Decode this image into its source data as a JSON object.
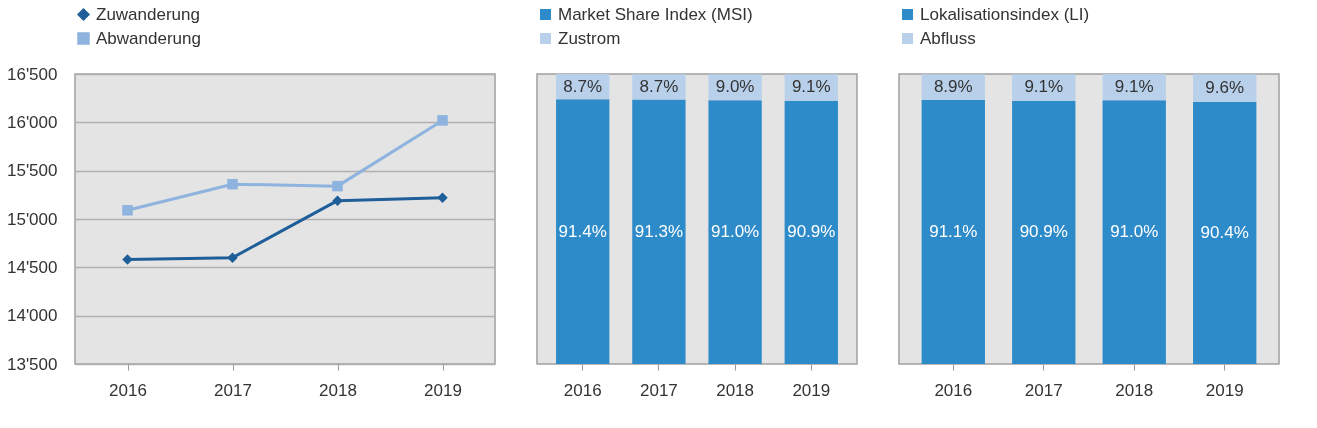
{
  "chart_data": [
    {
      "type": "line",
      "categories": [
        "2016",
        "2017",
        "2018",
        "2019"
      ],
      "series": [
        {
          "name": "Zuwanderung",
          "color": "#1f5f99",
          "marker": "diamond",
          "values": [
            14580,
            14600,
            15190,
            15220
          ]
        },
        {
          "name": "Abwanderung",
          "color": "#8db3de",
          "marker": "square",
          "values": [
            15090,
            15360,
            15340,
            16020
          ]
        }
      ],
      "ylim": [
        13500,
        16500
      ],
      "yticks": [
        {
          "value": 13500,
          "label": "13'500"
        },
        {
          "value": 14000,
          "label": "14'000"
        },
        {
          "value": 14500,
          "label": "14'500"
        },
        {
          "value": 15000,
          "label": "15'000"
        },
        {
          "value": 15500,
          "label": "15'500"
        },
        {
          "value": 16000,
          "label": "16'000"
        },
        {
          "value": 16500,
          "label": "16'500"
        }
      ],
      "grid": "y",
      "legend": "top left",
      "line_style": "solid"
    },
    {
      "type": "bar",
      "stacked": true,
      "categories": [
        "2016",
        "2017",
        "2018",
        "2019"
      ],
      "series": [
        {
          "name": "Market Share Index (MSI)",
          "color": "#2e8bc9",
          "values": [
            91.4,
            91.3,
            91.0,
            90.9
          ],
          "value_labels": [
            "91.4%",
            "91.3%",
            "91.0%",
            "90.9%"
          ]
        },
        {
          "name": "Zustrom",
          "color": "#b8d0ea",
          "values": [
            8.7,
            8.7,
            9.0,
            9.1
          ],
          "value_labels": [
            "8.7%",
            "8.7%",
            "9.0%",
            "9.1%"
          ]
        }
      ],
      "legend": "top left",
      "tick_labels": "x",
      "grid": false
    },
    {
      "type": "bar",
      "stacked": true,
      "categories": [
        "2016",
        "2017",
        "2018",
        "2019"
      ],
      "series": [
        {
          "name": "Lokalisationsindex (LI)",
          "color": "#2e8bc9",
          "values": [
            91.1,
            90.9,
            91.0,
            90.4
          ],
          "value_labels": [
            "91.1%",
            "90.9%",
            "91.0%",
            "90.4%"
          ]
        },
        {
          "name": "Abfluss",
          "color": "#b8d0ea",
          "values": [
            8.9,
            9.1,
            9.1,
            9.6
          ],
          "value_labels": [
            "8.9%",
            "9.1%",
            "9.1%",
            "9.6%"
          ]
        }
      ],
      "legend": "top left",
      "tick_labels": "x",
      "grid": false
    }
  ]
}
